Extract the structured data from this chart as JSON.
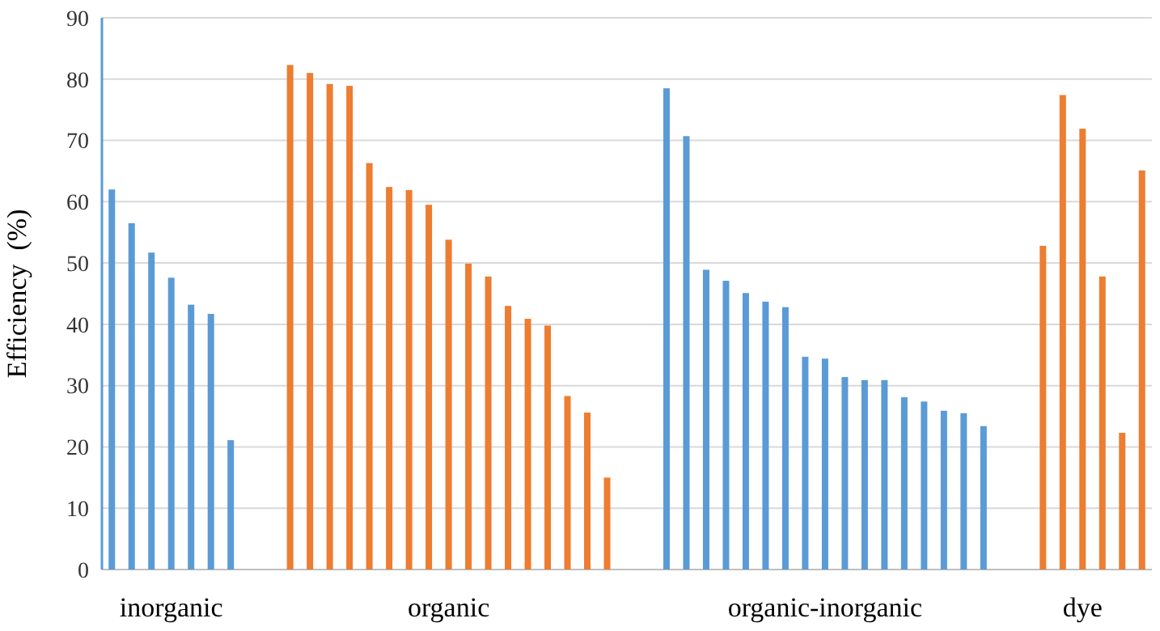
{
  "chart_data": {
    "type": "bar",
    "ylabel": "Efficiency  (%)",
    "ylim": [
      0,
      90
    ],
    "yticks": [
      0,
      10,
      20,
      30,
      40,
      50,
      60,
      70,
      80,
      90
    ],
    "grid": "y",
    "categories": [
      null,
      null,
      null,
      "inorganic",
      null,
      null,
      null,
      null,
      null,
      null,
      null,
      null,
      null,
      null,
      null,
      null,
      null,
      "organic",
      null,
      null,
      null,
      null,
      null,
      null,
      null,
      null,
      null,
      null,
      null,
      null,
      null,
      null,
      null,
      null,
      null,
      null,
      "organic-inorganic",
      null,
      null,
      null,
      null,
      null,
      null,
      null,
      null,
      null,
      null,
      null,
      null,
      "dye",
      null,
      null,
      null
    ],
    "series": [
      {
        "color": "#5b9bd5",
        "values": [
          62,
          56.5,
          51.7,
          47.6,
          43.2,
          41.7,
          21.1,
          null,
          null,
          null,
          null,
          null,
          null,
          null,
          null,
          null,
          null,
          null,
          null,
          null,
          null,
          null,
          null,
          null,
          null,
          null,
          null,
          null,
          78.5,
          70.7,
          48.9,
          47.1,
          45.1,
          43.7,
          42.8,
          34.7,
          34.4,
          31.4,
          30.9,
          30.9,
          28.1,
          27.4,
          25.9,
          25.5,
          23.4,
          null,
          null,
          null,
          null,
          null,
          null,
          null,
          null
        ]
      },
      {
        "color": "#ed7d31",
        "values": [
          null,
          null,
          null,
          null,
          null,
          null,
          null,
          null,
          null,
          82.3,
          81,
          79.2,
          78.9,
          66.3,
          62.4,
          61.9,
          59.5,
          53.8,
          49.9,
          47.8,
          43,
          40.9,
          39.8,
          28.3,
          25.6,
          15,
          null,
          null,
          null,
          null,
          null,
          null,
          null,
          null,
          null,
          null,
          null,
          null,
          null,
          null,
          null,
          null,
          null,
          null,
          null,
          null,
          null,
          52.8,
          77.4,
          71.9,
          47.8,
          22.3,
          65.1
        ]
      }
    ]
  }
}
